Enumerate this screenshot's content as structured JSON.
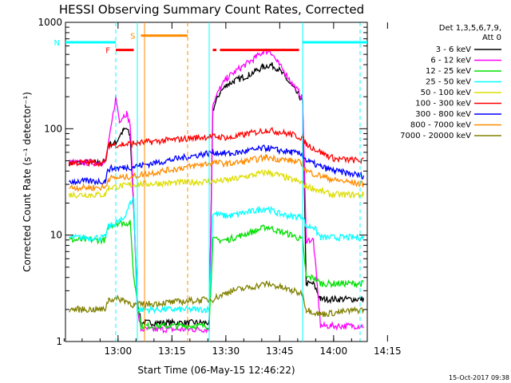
{
  "chart_data": {
    "type": "line",
    "title": "HESSI Observing Summary Count Rates, Corrected",
    "xlabel": "Start Time (06-May-15 12:46:22)",
    "ylabel": "Corrected Count Rate (s⁻¹ detector⁻¹)",
    "y_scale": "log",
    "ylim": [
      1,
      1000
    ],
    "xlim_minutes": [
      -1,
      83
    ],
    "x_tick_labels": [
      "13:00",
      "13:15",
      "13:30",
      "13:45",
      "14:00",
      "14:15"
    ],
    "y_tick_labels": [
      "1",
      "10",
      "100",
      "1000"
    ],
    "legend_header": [
      "Det 1,3,5,6,7,9,",
      "Att 0"
    ],
    "legend_placement": "right, outside plot",
    "footer_timestamp": "15-Oct-2017 09:38",
    "series": [
      {
        "name": "3 - 6 keV",
        "color": "#000000",
        "points": [
          [
            0,
            48
          ],
          [
            10,
            48
          ],
          [
            11,
            72
          ],
          [
            13,
            73
          ],
          [
            14,
            85
          ],
          [
            15,
            95
          ],
          [
            16,
            100
          ],
          [
            17,
            85
          ],
          [
            18,
            18
          ],
          [
            19,
            2.5
          ],
          [
            20,
            1.5
          ],
          [
            39,
            1.5
          ],
          [
            40,
            150
          ],
          [
            42,
            220
          ],
          [
            44,
            260
          ],
          [
            46,
            280
          ],
          [
            48,
            300
          ],
          [
            50,
            320
          ],
          [
            52,
            350
          ],
          [
            54,
            380
          ],
          [
            56,
            400
          ],
          [
            58,
            370
          ],
          [
            60,
            310
          ],
          [
            62,
            250
          ],
          [
            64,
            205
          ],
          [
            65,
            180
          ],
          [
            66,
            3.5
          ],
          [
            68,
            3.5
          ],
          [
            70,
            2.5
          ],
          [
            82,
            2.5
          ]
        ]
      },
      {
        "name": "6 - 12 keV",
        "color": "#ff00ff",
        "points": [
          [
            0,
            48
          ],
          [
            10,
            48
          ],
          [
            11,
            72
          ],
          [
            13,
            200
          ],
          [
            14,
            120
          ],
          [
            15,
            130
          ],
          [
            16,
            140
          ],
          [
            17,
            110
          ],
          [
            18,
            18
          ],
          [
            19,
            2
          ],
          [
            20,
            1.3
          ],
          [
            39,
            1.3
          ],
          [
            40,
            170
          ],
          [
            42,
            240
          ],
          [
            44,
            300
          ],
          [
            46,
            340
          ],
          [
            48,
            380
          ],
          [
            50,
            420
          ],
          [
            52,
            470
          ],
          [
            54,
            530
          ],
          [
            56,
            540
          ],
          [
            58,
            420
          ],
          [
            60,
            340
          ],
          [
            62,
            270
          ],
          [
            64,
            220
          ],
          [
            65,
            190
          ],
          [
            66,
            9
          ],
          [
            68,
            9
          ],
          [
            70,
            1.4
          ],
          [
            82,
            1.4
          ]
        ]
      },
      {
        "name": "12 - 25 keV",
        "color": "#00e000",
        "points": [
          [
            0,
            9
          ],
          [
            10,
            9
          ],
          [
            11,
            12
          ],
          [
            13,
            13
          ],
          [
            15,
            13
          ],
          [
            17,
            13
          ],
          [
            18,
            4
          ],
          [
            19,
            2.5
          ],
          [
            20,
            1.4
          ],
          [
            39,
            1.4
          ],
          [
            40,
            9
          ],
          [
            44,
            9
          ],
          [
            48,
            10
          ],
          [
            52,
            11
          ],
          [
            55,
            12
          ],
          [
            58,
            11
          ],
          [
            62,
            10
          ],
          [
            65,
            9
          ],
          [
            66,
            4
          ],
          [
            68,
            4
          ],
          [
            70,
            3.5
          ],
          [
            82,
            3.5
          ]
        ]
      },
      {
        "name": "25 - 50 keV",
        "color": "#00ffff",
        "points": [
          [
            0,
            9.5
          ],
          [
            10,
            9.5
          ],
          [
            11,
            12
          ],
          [
            13,
            13
          ],
          [
            15,
            14
          ],
          [
            17,
            20
          ],
          [
            18,
            22
          ],
          [
            19,
            2
          ],
          [
            39,
            2
          ],
          [
            40,
            16
          ],
          [
            44,
            15
          ],
          [
            48,
            16
          ],
          [
            52,
            17
          ],
          [
            55,
            18
          ],
          [
            58,
            16
          ],
          [
            62,
            15
          ],
          [
            65,
            15
          ],
          [
            66,
            12
          ],
          [
            68,
            12
          ],
          [
            70,
            9.5
          ],
          [
            82,
            9.5
          ]
        ]
      },
      {
        "name": "50 - 100 keV",
        "color": "#dddd00",
        "points": [
          [
            0,
            24
          ],
          [
            10,
            24
          ],
          [
            11,
            28
          ],
          [
            15,
            29
          ],
          [
            18,
            30
          ],
          [
            40,
            32
          ],
          [
            45,
            33
          ],
          [
            50,
            36
          ],
          [
            55,
            39
          ],
          [
            58,
            37
          ],
          [
            62,
            33
          ],
          [
            65,
            31
          ],
          [
            66,
            29
          ],
          [
            70,
            26
          ],
          [
            73,
            24
          ],
          [
            82,
            24
          ]
        ]
      },
      {
        "name": "100 - 300 keV",
        "color": "#ff0000",
        "points": [
          [
            0,
            48
          ],
          [
            10,
            48
          ],
          [
            11,
            70
          ],
          [
            15,
            71
          ],
          [
            18,
            73
          ],
          [
            40,
            85
          ],
          [
            45,
            82
          ],
          [
            50,
            90
          ],
          [
            55,
            97
          ],
          [
            58,
            94
          ],
          [
            62,
            88
          ],
          [
            65,
            82
          ],
          [
            66,
            72
          ],
          [
            70,
            60
          ],
          [
            74,
            52
          ],
          [
            82,
            50
          ]
        ]
      },
      {
        "name": "300 - 800 keV",
        "color": "#0000ff",
        "points": [
          [
            0,
            32
          ],
          [
            10,
            32
          ],
          [
            11,
            42
          ],
          [
            15,
            43
          ],
          [
            18,
            44
          ],
          [
            40,
            60
          ],
          [
            45,
            58
          ],
          [
            50,
            62
          ],
          [
            55,
            66
          ],
          [
            58,
            63
          ],
          [
            62,
            60
          ],
          [
            65,
            57
          ],
          [
            66,
            50
          ],
          [
            70,
            44
          ],
          [
            74,
            40
          ],
          [
            82,
            36
          ]
        ]
      },
      {
        "name": "800 - 7000 keV",
        "color": "#ff8c00",
        "points": [
          [
            0,
            28
          ],
          [
            10,
            28
          ],
          [
            11,
            34
          ],
          [
            15,
            35
          ],
          [
            18,
            36
          ],
          [
            40,
            48
          ],
          [
            45,
            47
          ],
          [
            50,
            50
          ],
          [
            55,
            54
          ],
          [
            58,
            52
          ],
          [
            62,
            50
          ],
          [
            65,
            47
          ],
          [
            66,
            40
          ],
          [
            70,
            36
          ],
          [
            74,
            33
          ],
          [
            82,
            30
          ]
        ]
      },
      {
        "name": "7000 - 20000 keV",
        "color": "#808000",
        "points": [
          [
            0,
            2
          ],
          [
            10,
            2
          ],
          [
            11,
            2.5
          ],
          [
            15,
            2.5
          ],
          [
            18,
            2.2
          ],
          [
            40,
            2.5
          ],
          [
            45,
            3
          ],
          [
            50,
            3.2
          ],
          [
            55,
            3.5
          ],
          [
            58,
            3.3
          ],
          [
            62,
            3
          ],
          [
            65,
            2.8
          ],
          [
            66,
            2
          ],
          [
            70,
            1.8
          ],
          [
            82,
            2
          ]
        ]
      }
    ],
    "markers": [
      {
        "label": "F",
        "color": "#ff0000",
        "bars": [
          [
            13,
            18
          ]
        ],
        "level": 550,
        "style": "solid"
      },
      {
        "label": "N",
        "color": "#00ffff",
        "bars": [
          [
            -1,
            13
          ],
          [
            65,
            83
          ]
        ],
        "level": 650,
        "style": "solid"
      },
      {
        "label": "S",
        "color": "#ff8c00",
        "bars": [
          [
            20,
            33
          ]
        ],
        "level": 750,
        "style": "solid"
      },
      {
        "label": "",
        "color": "#ff0000",
        "bars": [
          [
            40,
            41
          ],
          [
            42,
            64
          ]
        ],
        "level": 550,
        "style": "solid"
      }
    ],
    "vertical_lines": [
      {
        "x": 13,
        "color": "#00ffff",
        "style": "dashed"
      },
      {
        "x": 19,
        "color": "#00ffff",
        "style": "solid"
      },
      {
        "x": 21,
        "color": "#ff8c00",
        "style": "solid"
      },
      {
        "x": 33,
        "color": "#ff8c00",
        "style": "dashed"
      },
      {
        "x": 39,
        "color": "#00ffff",
        "style": "solid"
      },
      {
        "x": 65,
        "color": "#00ffff",
        "style": "solid"
      },
      {
        "x": 81,
        "color": "#00ffff",
        "style": "dashed"
      }
    ]
  }
}
